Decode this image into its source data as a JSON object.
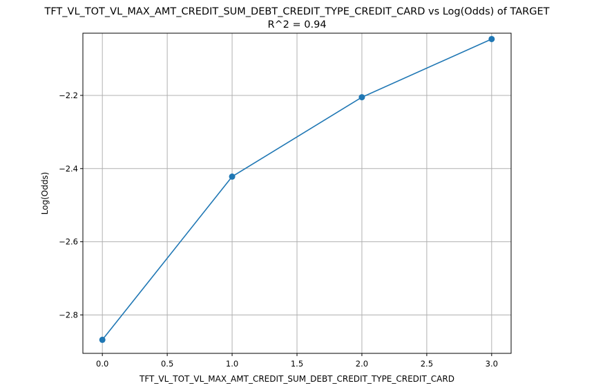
{
  "chart_data": {
    "type": "line",
    "title": "TFT_VL_TOT_VL_MAX_AMT_CREDIT_SUM_DEBT_CREDIT_TYPE_CREDIT_CARD vs Log(Odds) of TARGET",
    "subtitle": "R^2 = 0.94",
    "xlabel": "TFT_VL_TOT_VL_MAX_AMT_CREDIT_SUM_DEBT_CREDIT_TYPE_CREDIT_CARD",
    "ylabel": "Log(Odds)",
    "xlim": [
      -0.15,
      3.15
    ],
    "ylim": [
      -2.905,
      -2.03
    ],
    "xticks": [
      0.0,
      0.5,
      1.0,
      1.5,
      2.0,
      2.5,
      3.0
    ],
    "xtick_labels": [
      "0.0",
      "0.5",
      "1.0",
      "1.5",
      "2.0",
      "2.5",
      "3.0"
    ],
    "yticks": [
      -2.8,
      -2.6,
      -2.4,
      -2.2
    ],
    "ytick_labels": [
      "−2.8",
      "−2.6",
      "−2.4",
      "−2.2"
    ],
    "grid": true,
    "series": [
      {
        "name": "Log(Odds)",
        "color": "#1f77b4",
        "marker": "circle",
        "x": [
          0,
          1,
          2,
          3
        ],
        "values": [
          -2.868,
          -2.422,
          -2.205,
          -2.046
        ]
      }
    ]
  }
}
